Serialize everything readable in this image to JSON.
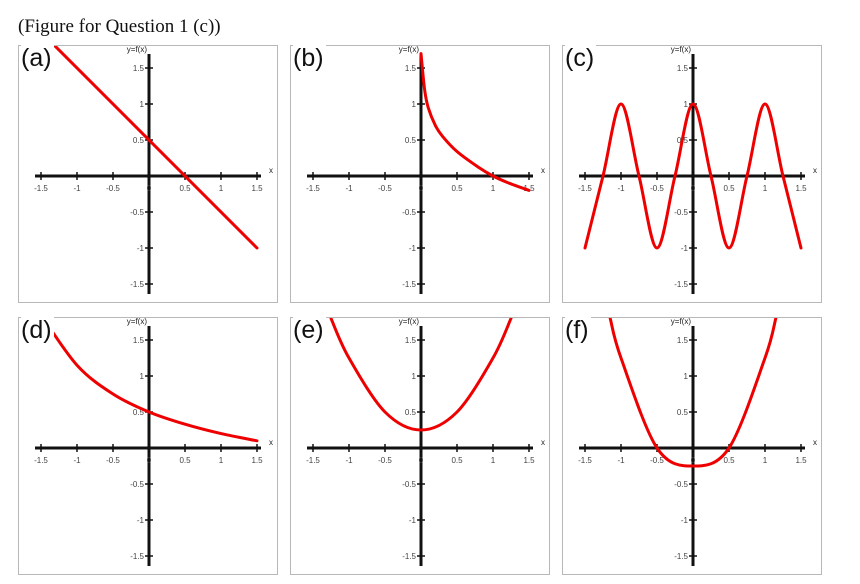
{
  "caption": "(Figure for Question 1 (c))",
  "axis": {
    "y_label": "y=f(x)",
    "x_label": "x",
    "x_ticks": [
      "-1.5",
      "-1",
      "-0.5",
      "0",
      "0.5",
      "1",
      "1.5"
    ],
    "y_ticks": [
      "1.5",
      "1",
      "0.5",
      "-0.5",
      "-1",
      "-1.5"
    ]
  },
  "colors": {
    "curve": "#ee0000",
    "axis": "#111111",
    "border": "#b8b8b8"
  },
  "panels": [
    {
      "label": "(a)"
    },
    {
      "label": "(b)"
    },
    {
      "label": "(c)"
    },
    {
      "label": "(d)"
    },
    {
      "label": "(e)"
    },
    {
      "label": "(f)"
    }
  ],
  "chart_data": [
    {
      "type": "line",
      "xlim": [
        -1.5,
        1.5
      ],
      "ylim": [
        -1.5,
        1.5
      ],
      "x": [
        -1.5,
        1.5
      ],
      "y": [
        2.0,
        -1.0
      ]
    },
    {
      "type": "line",
      "xlim": [
        -1.5,
        1.5
      ],
      "ylim": [
        -1.5,
        1.5
      ],
      "x": [
        0.0,
        0.05,
        0.1,
        0.2,
        0.3,
        0.5,
        0.8,
        1.0,
        1.2,
        1.5
      ],
      "y": [
        1.7,
        1.2,
        0.95,
        0.7,
        0.55,
        0.34,
        0.12,
        0.0,
        -0.09,
        -0.2
      ]
    },
    {
      "type": "line",
      "xlim": [
        -1.5,
        1.5
      ],
      "ylim": [
        -1.5,
        1.5
      ],
      "x": [
        -1.5,
        -1.25,
        -1.0,
        -0.75,
        -0.5,
        -0.25,
        0.0,
        0.25,
        0.5,
        0.75,
        1.0,
        1.25,
        1.5
      ],
      "y": [
        -1.0,
        0.0,
        1.0,
        0.0,
        -1.0,
        0.0,
        1.0,
        0.0,
        -1.0,
        0.0,
        1.0,
        0.0,
        -1.0
      ]
    },
    {
      "type": "line",
      "xlim": [
        -1.5,
        1.5
      ],
      "ylim": [
        -1.5,
        1.5
      ],
      "x": [
        -1.5,
        -1.0,
        -0.5,
        0.0,
        0.5,
        1.0,
        1.5
      ],
      "y": [
        1.85,
        1.15,
        0.75,
        0.5,
        0.33,
        0.2,
        0.1
      ]
    },
    {
      "type": "line",
      "xlim": [
        -1.5,
        1.5
      ],
      "ylim": [
        -1.5,
        1.5
      ],
      "x": [
        -1.25,
        -1.0,
        -0.5,
        0.0,
        0.5,
        1.0,
        1.25
      ],
      "y": [
        1.8,
        1.25,
        0.5,
        0.25,
        0.5,
        1.25,
        1.8
      ]
    },
    {
      "type": "line",
      "xlim": [
        -1.5,
        1.5
      ],
      "ylim": [
        -1.5,
        1.5
      ],
      "x": [
        -1.15,
        -1.0,
        -0.5,
        0.0,
        0.5,
        1.0,
        1.15
      ],
      "y": [
        1.8,
        1.25,
        0.0,
        -0.25,
        0.0,
        1.25,
        1.8
      ]
    }
  ]
}
